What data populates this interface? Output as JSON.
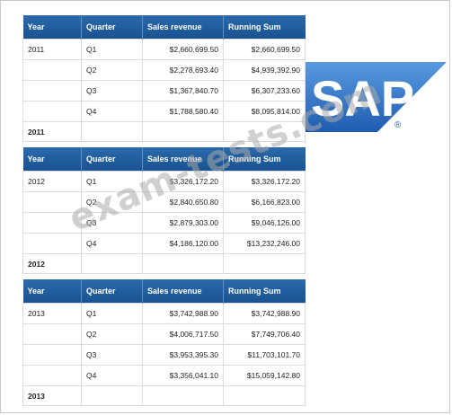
{
  "headers": {
    "year": "Year",
    "quarter": "Quarter",
    "revenue": "Sales revenue",
    "running_sum": "Running Sum"
  },
  "tables": [
    {
      "year": "2011",
      "rows": [
        {
          "quarter": "Q1",
          "revenue": "$2,660,699.50",
          "running": "$2,660,699.50"
        },
        {
          "quarter": "Q2",
          "revenue": "$2,278,693.40",
          "running": "$4,939,392.90"
        },
        {
          "quarter": "Q3",
          "revenue": "$1,367,840.70",
          "running": "$6,307,233.60"
        },
        {
          "quarter": "Q4",
          "revenue": "$1,788,580.40",
          "running": "$8,095,814.00"
        }
      ],
      "total_label": "2011"
    },
    {
      "year": "2012",
      "rows": [
        {
          "quarter": "Q1",
          "revenue": "$3,326,172.20",
          "running": "$3,326,172.20"
        },
        {
          "quarter": "Q2",
          "revenue": "$2,840,650.80",
          "running": "$6,166,823.00"
        },
        {
          "quarter": "Q3",
          "revenue": "$2,879,303.00",
          "running": "$9,046,126.00"
        },
        {
          "quarter": "Q4",
          "revenue": "$4,186,120.00",
          "running": "$13,232,246.00"
        }
      ],
      "total_label": "2012"
    },
    {
      "year": "2013",
      "rows": [
        {
          "quarter": "Q1",
          "revenue": "$3,742,988.90",
          "running": "$3,742,988.90"
        },
        {
          "quarter": "Q2",
          "revenue": "$4,006,717.50",
          "running": "$7,749,706.40"
        },
        {
          "quarter": "Q3",
          "revenue": "$3,953,395.30",
          "running": "$11,703,101.70"
        },
        {
          "quarter": "Q4",
          "revenue": "$3,356,041.10",
          "running": "$15,059,142.80"
        }
      ],
      "total_label": "2013"
    }
  ],
  "logo": {
    "text": "SAP",
    "registered": "®",
    "color": "#2a63b5"
  },
  "watermark": "exam-tests.com"
}
